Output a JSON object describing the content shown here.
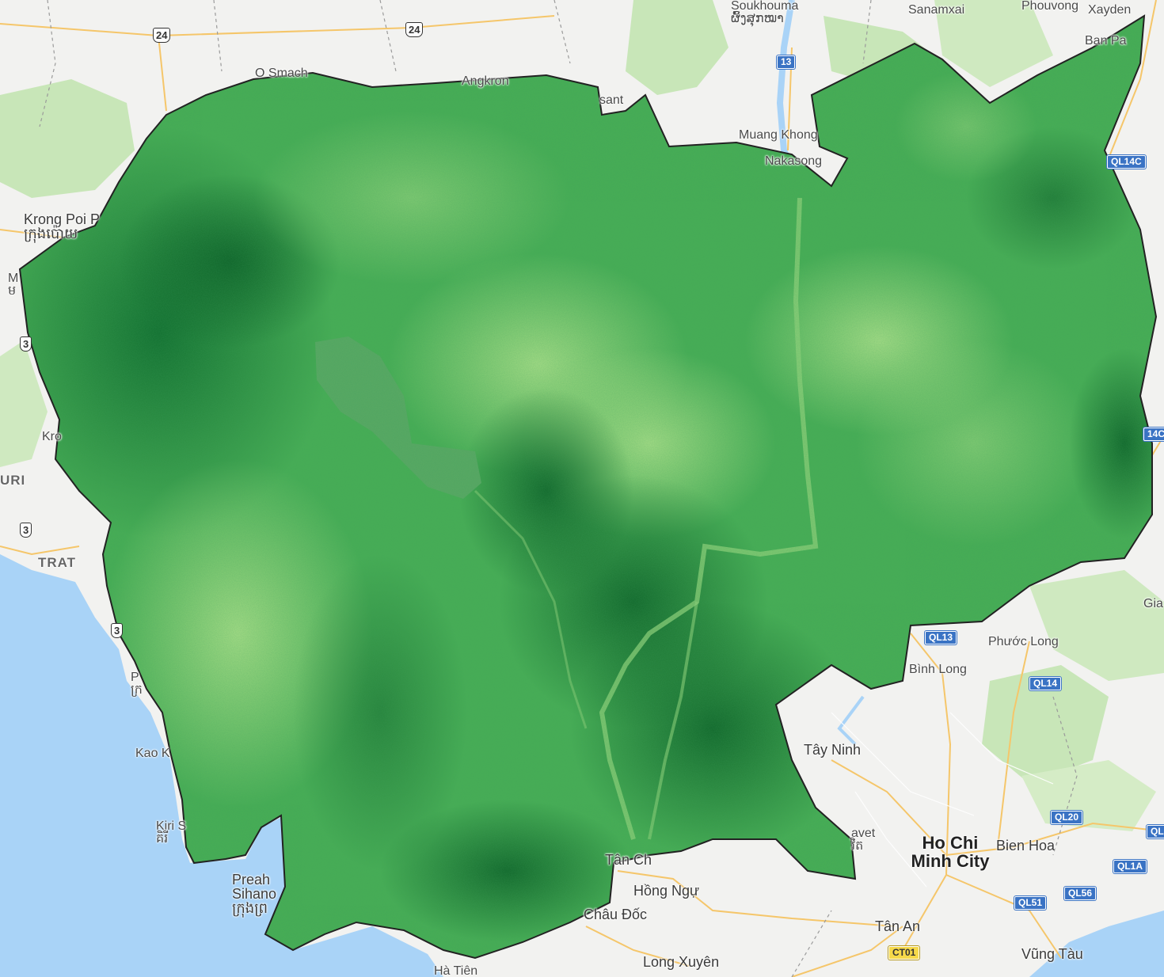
{
  "colors": {
    "land": "#f2f2f0",
    "water": "#a9d3f7",
    "forest": "#c8e6b8",
    "road": "#f5c66a",
    "veg_light": "#a5dc86",
    "veg_mid": "#47ad55",
    "veg_dark": "#0e6b2e",
    "border": "#222222"
  },
  "places": [
    {
      "name": "Soukhouma",
      "script": "ຜົ້ງສຸກໝາ"
    },
    {
      "name": "Sanamxai"
    },
    {
      "name": "Phouvong"
    },
    {
      "name": "Xayden"
    },
    {
      "name": "Ban Pa"
    },
    {
      "name": "O Smach"
    },
    {
      "name": "Angkron"
    },
    {
      "name": "sant"
    },
    {
      "name": "Muang Khong"
    },
    {
      "name": "Nakasong"
    },
    {
      "name": "Krong Poi P",
      "script": "ក្រុងប៉ោយ"
    },
    {
      "name": "M",
      "script": "ម"
    },
    {
      "name": "Kro"
    },
    {
      "name": "URI"
    },
    {
      "name": "TRAT"
    },
    {
      "name": "P",
      "script": "ក្រ"
    },
    {
      "name": "Kao K"
    },
    {
      "name": "Kiri S",
      "script": "គិរី"
    },
    {
      "name": "Preah Sihano",
      "script": "ក្រុងព្រ"
    },
    {
      "name": "Hà Tiên"
    },
    {
      "name": "Tân Ch"
    },
    {
      "name": "Hồng Ngự"
    },
    {
      "name": "Châu Đốc"
    },
    {
      "name": "Long Xuyên"
    },
    {
      "name": "Tân An"
    },
    {
      "name": "Vũng Tàu"
    },
    {
      "name": "Ho Chi Minh City"
    },
    {
      "name": "Bien Hoa"
    },
    {
      "name": "Tây Ninh"
    },
    {
      "name": "Bình Long"
    },
    {
      "name": "Phước Long"
    },
    {
      "name": "Gia"
    },
    {
      "name": "avet",
      "script": "វិត"
    }
  ],
  "roads": [
    {
      "ref": "24"
    },
    {
      "ref": "24"
    },
    {
      "ref": "13"
    },
    {
      "ref": "3"
    },
    {
      "ref": "3"
    },
    {
      "ref": "3"
    },
    {
      "ref": "QL14C"
    },
    {
      "ref": "14C"
    },
    {
      "ref": "QL13"
    },
    {
      "ref": "QL14"
    },
    {
      "ref": "QL20"
    },
    {
      "ref": "QL1A"
    },
    {
      "ref": "QL56"
    },
    {
      "ref": "QL51"
    },
    {
      "ref": "CT01"
    },
    {
      "ref": "QL"
    }
  ]
}
